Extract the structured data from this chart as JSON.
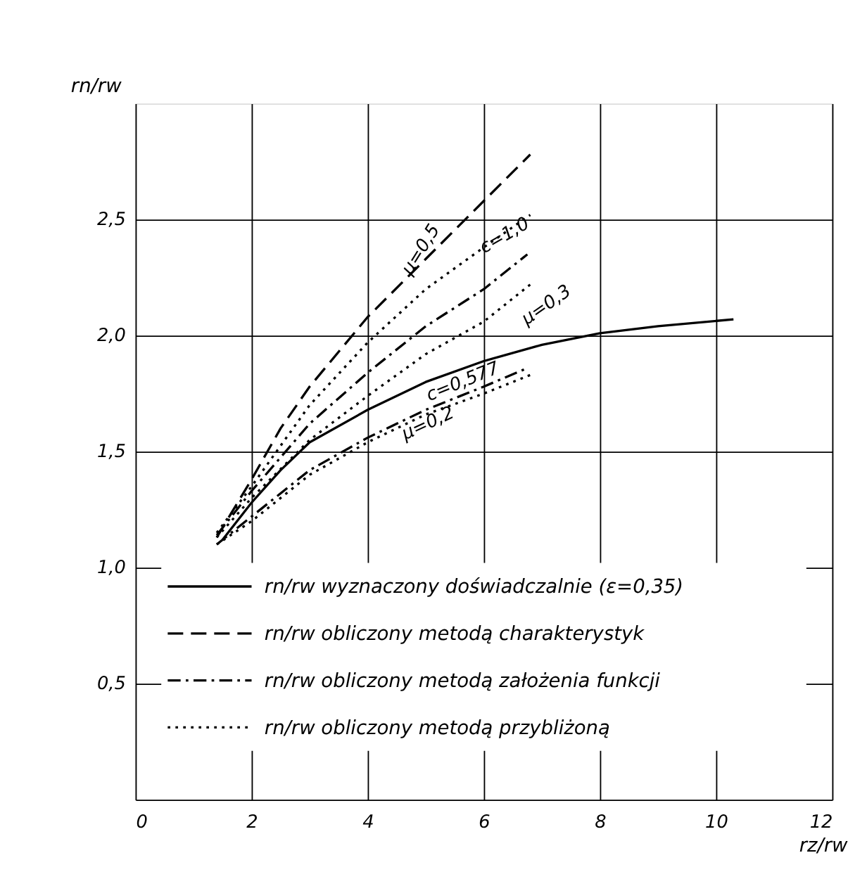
{
  "chart_data": {
    "type": "line",
    "xlabel": "rz/rw",
    "ylabel": "rn/rw",
    "xlim": [
      0,
      12
    ],
    "ylim": [
      0,
      3
    ],
    "xticks": [
      0,
      2,
      4,
      6,
      8,
      10,
      12
    ],
    "yticks": [
      {
        "value": 0,
        "label": null
      },
      {
        "value": 0.5,
        "label": "0,5"
      },
      {
        "value": 1.0,
        "label": "1,0"
      },
      {
        "value": 1.5,
        "label": "1,5"
      },
      {
        "value": 2.0,
        "label": "2,0"
      },
      {
        "value": 2.5,
        "label": "2,5"
      }
    ],
    "grid": true,
    "legend": "bottom",
    "marker": "none",
    "series": [
      {
        "name": "rn/rw wyznaczony doświadczalnie (ε=0,35)",
        "color": "#000000",
        "line_style": "solid",
        "x": [
          1.5,
          2,
          2.5,
          3,
          4,
          5,
          6,
          7,
          8,
          9,
          10.3
        ],
        "values": [
          1.12,
          1.28,
          1.42,
          1.54,
          1.68,
          1.8,
          1.89,
          1.96,
          2.01,
          2.04,
          2.07
        ]
      },
      {
        "name": "rn/rw obliczony metodą charakterystyk",
        "color": "#000000",
        "line_style": "dashed",
        "x": [
          1.4,
          2,
          2.5,
          3,
          4,
          5,
          6,
          6.8
        ],
        "values": [
          1.13,
          1.38,
          1.6,
          1.78,
          2.08,
          2.33,
          2.58,
          2.78
        ]
      },
      {
        "name": "rn/rw obliczony metodą założenia funkcji",
        "color": "#000000",
        "line_style": "dashdot",
        "x": [
          1.4,
          2,
          3,
          4,
          5,
          6,
          6.75
        ],
        "values": [
          1.14,
          1.33,
          1.62,
          1.84,
          2.04,
          2.2,
          2.35
        ]
      },
      {
        "color": "#000000",
        "line_style": "dashdot",
        "x": [
          1.4,
          2,
          3,
          4,
          5,
          6,
          6.75
        ],
        "values": [
          1.1,
          1.22,
          1.42,
          1.56,
          1.68,
          1.78,
          1.86
        ]
      },
      {
        "name": "rn/rw obliczony metodą przybliżoną",
        "color": "#000000",
        "line_style": "dotted",
        "x": [
          1.4,
          2,
          3,
          4,
          5,
          6,
          6.8
        ],
        "values": [
          1.15,
          1.35,
          1.7,
          1.97,
          2.2,
          2.38,
          2.52
        ]
      },
      {
        "color": "#000000",
        "line_style": "dotted",
        "x": [
          1.4,
          2,
          3,
          4,
          5,
          6,
          6.8
        ],
        "values": [
          1.13,
          1.3,
          1.55,
          1.74,
          1.92,
          2.06,
          2.22
        ]
      },
      {
        "color": "#000000",
        "line_style": "dotted",
        "x": [
          1.4,
          2,
          3,
          4,
          5,
          6,
          6.8
        ],
        "values": [
          1.1,
          1.2,
          1.4,
          1.54,
          1.66,
          1.75,
          1.83
        ]
      }
    ],
    "annotations": [
      "μ=0,5",
      "c=1,0",
      "μ=0,3",
      "c=0,577",
      "μ=0,2"
    ]
  }
}
